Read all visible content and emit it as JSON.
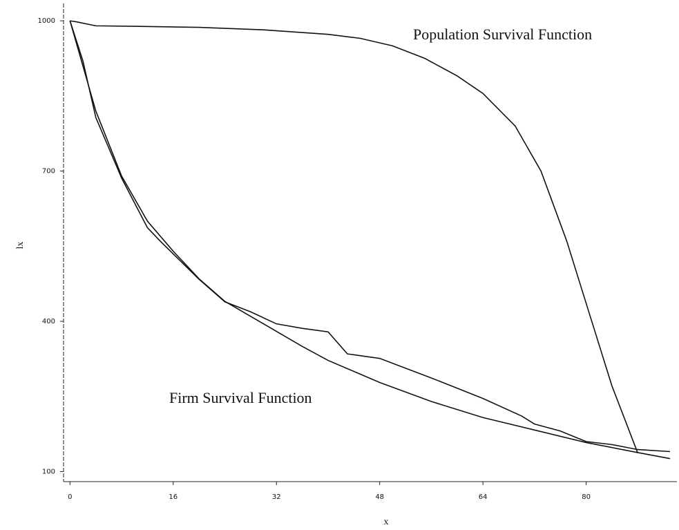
{
  "chart_data": {
    "type": "line",
    "x_label": "x",
    "y_label": "lx",
    "annotations": [
      "Population Survival Function",
      "Firm Survival Function"
    ],
    "xlim": [
      -1,
      93
    ],
    "ylim": [
      80,
      1025
    ],
    "xticks": [
      0,
      16,
      32,
      48,
      64,
      80
    ],
    "yticks": [
      100,
      400,
      700,
      1000
    ],
    "series": [
      {
        "color": "#111111",
        "x": [
          0,
          1,
          4,
          10,
          20,
          30,
          40,
          45,
          50,
          55,
          60,
          64,
          69,
          73,
          77,
          80,
          84,
          88
        ],
        "values": [
          1000,
          998,
          990,
          989,
          987,
          982,
          973,
          965,
          950,
          925,
          890,
          855,
          790,
          700,
          560,
          436,
          271,
          137
        ]
      },
      {
        "color": "#111111",
        "x": [
          0,
          2,
          4,
          8,
          12,
          14,
          20,
          24,
          28,
          32,
          36,
          40,
          43,
          48,
          56,
          64,
          70,
          72,
          76,
          80,
          84,
          88,
          93
        ],
        "values": [
          1000,
          920,
          807,
          686,
          587,
          560,
          484,
          439,
          419,
          395,
          386,
          379,
          335,
          326,
          287,
          246,
          211,
          195,
          181,
          160,
          154,
          144,
          140
        ]
      },
      {
        "color": "#111111",
        "x": [
          0,
          4,
          8,
          12,
          16,
          20,
          24,
          28,
          32,
          36,
          40,
          44,
          48,
          56,
          64,
          72,
          80,
          88,
          93
        ],
        "values": [
          1000,
          820,
          690,
          600,
          540,
          485,
          440,
          410,
          380,
          350,
          322,
          300,
          278,
          240,
          208,
          183,
          158,
          138,
          126
        ]
      }
    ]
  }
}
